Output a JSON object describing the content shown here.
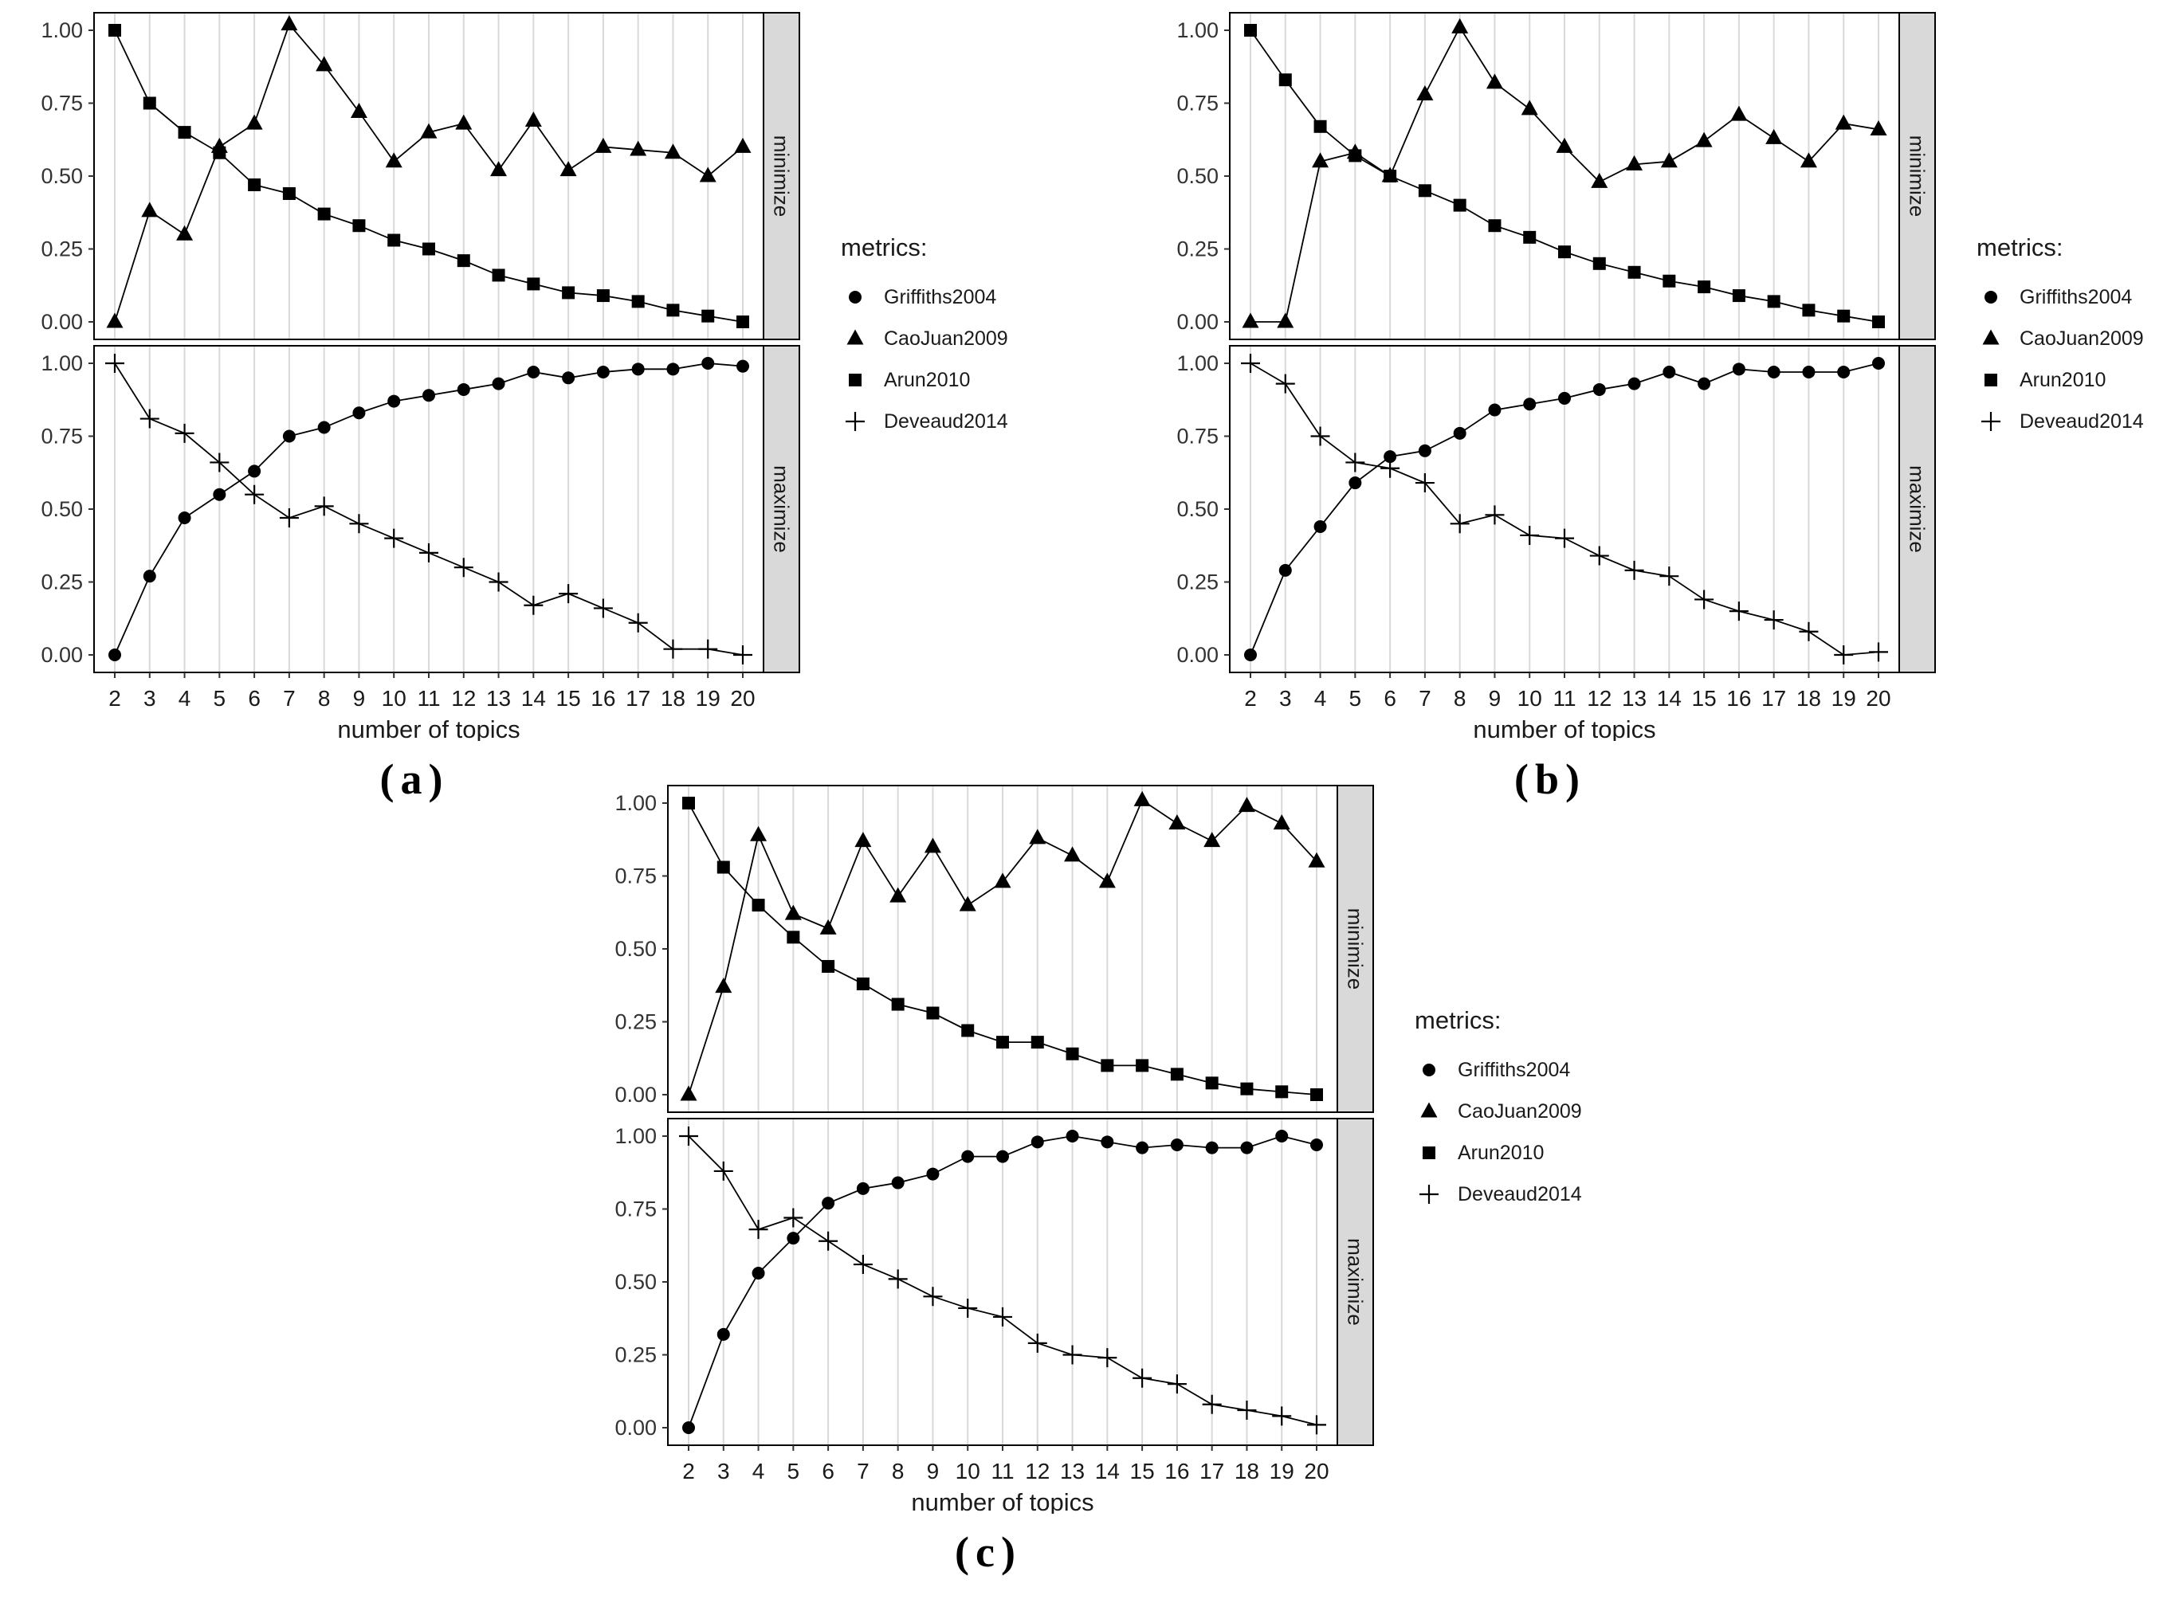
{
  "figure": {
    "x_label": "number of topics",
    "y_tick_values": [
      0,
      0.25,
      0.5,
      0.75,
      1
    ],
    "y_tick_labels": [
      "0.00",
      "0.25",
      "0.50",
      "0.75",
      "1.00"
    ],
    "facet_labels": [
      "minimize",
      "maximize"
    ],
    "legend": {
      "title": "metrics:",
      "items": [
        {
          "label": "Griffiths2004",
          "marker": "circle"
        },
        {
          "label": "CaoJuan2009",
          "marker": "triangle"
        },
        {
          "label": "Arun2010",
          "marker": "square"
        },
        {
          "label": "Deveaud2014",
          "marker": "plus"
        }
      ]
    },
    "colors": {
      "points": "#000000",
      "grid": "#d9d9d9",
      "strip_fill": "#d9d9d9",
      "panel_border": "#000000",
      "tick_text": "#333333"
    }
  },
  "chart_data": [
    {
      "panel": "(a)",
      "type": "line",
      "xlabel": "number of topics",
      "ylim": [
        0,
        1
      ],
      "x": [
        2,
        3,
        4,
        5,
        6,
        7,
        8,
        9,
        10,
        11,
        12,
        13,
        14,
        15,
        16,
        17,
        18,
        19,
        20
      ],
      "facets": [
        {
          "name": "minimize",
          "series": [
            {
              "name": "CaoJuan2009",
              "marker": "triangle",
              "values": [
                0.0,
                0.38,
                0.3,
                0.6,
                0.68,
                1.02,
                0.88,
                0.72,
                0.55,
                0.65,
                0.68,
                0.52,
                0.69,
                0.52,
                0.6,
                0.59,
                0.58,
                0.5,
                0.6
              ]
            },
            {
              "name": "Arun2010",
              "marker": "square",
              "values": [
                1.0,
                0.75,
                0.65,
                0.58,
                0.47,
                0.44,
                0.37,
                0.33,
                0.28,
                0.25,
                0.21,
                0.16,
                0.13,
                0.1,
                0.09,
                0.07,
                0.04,
                0.02,
                0.0
              ]
            }
          ]
        },
        {
          "name": "maximize",
          "series": [
            {
              "name": "Griffiths2004",
              "marker": "circle",
              "values": [
                0.0,
                0.27,
                0.47,
                0.55,
                0.63,
                0.75,
                0.78,
                0.83,
                0.87,
                0.89,
                0.91,
                0.93,
                0.97,
                0.95,
                0.97,
                0.98,
                0.98,
                1.0,
                0.99
              ]
            },
            {
              "name": "Deveaud2014",
              "marker": "plus",
              "values": [
                1.0,
                0.81,
                0.76,
                0.66,
                0.55,
                0.47,
                0.51,
                0.45,
                0.4,
                0.35,
                0.3,
                0.25,
                0.17,
                0.21,
                0.16,
                0.11,
                0.02,
                0.02,
                0.0
              ]
            }
          ]
        }
      ]
    },
    {
      "panel": "(b)",
      "type": "line",
      "xlabel": "number of topics",
      "ylim": [
        0,
        1
      ],
      "x": [
        2,
        3,
        4,
        5,
        6,
        7,
        8,
        9,
        10,
        11,
        12,
        13,
        14,
        15,
        16,
        17,
        18,
        19,
        20
      ],
      "facets": [
        {
          "name": "minimize",
          "series": [
            {
              "name": "CaoJuan2009",
              "marker": "triangle",
              "values": [
                0.0,
                0.0,
                0.55,
                0.58,
                0.5,
                0.78,
                1.01,
                0.82,
                0.73,
                0.6,
                0.48,
                0.54,
                0.55,
                0.62,
                0.71,
                0.63,
                0.55,
                0.68,
                0.66
              ]
            },
            {
              "name": "Arun2010",
              "marker": "square",
              "values": [
                1.0,
                0.83,
                0.67,
                0.57,
                0.5,
                0.45,
                0.4,
                0.33,
                0.29,
                0.24,
                0.2,
                0.17,
                0.14,
                0.12,
                0.09,
                0.07,
                0.04,
                0.02,
                0.0
              ]
            }
          ]
        },
        {
          "name": "maximize",
          "series": [
            {
              "name": "Griffiths2004",
              "marker": "circle",
              "values": [
                0.0,
                0.29,
                0.44,
                0.59,
                0.68,
                0.7,
                0.76,
                0.84,
                0.86,
                0.88,
                0.91,
                0.93,
                0.97,
                0.93,
                0.98,
                0.97,
                0.97,
                0.97,
                1.0
              ]
            },
            {
              "name": "Deveaud2014",
              "marker": "plus",
              "values": [
                1.0,
                0.93,
                0.75,
                0.66,
                0.64,
                0.59,
                0.45,
                0.48,
                0.41,
                0.4,
                0.34,
                0.29,
                0.27,
                0.19,
                0.15,
                0.12,
                0.08,
                0.0,
                0.01
              ]
            }
          ]
        }
      ]
    },
    {
      "panel": "(c)",
      "type": "line",
      "xlabel": "number of topics",
      "ylim": [
        0,
        1
      ],
      "x": [
        2,
        3,
        4,
        5,
        6,
        7,
        8,
        9,
        10,
        11,
        12,
        13,
        14,
        15,
        16,
        17,
        18,
        19,
        20
      ],
      "facets": [
        {
          "name": "minimize",
          "series": [
            {
              "name": "CaoJuan2009",
              "marker": "triangle",
              "values": [
                0.0,
                0.37,
                0.89,
                0.62,
                0.57,
                0.87,
                0.68,
                0.85,
                0.65,
                0.73,
                0.88,
                0.82,
                0.73,
                1.01,
                0.93,
                0.87,
                0.99,
                0.93,
                0.8
              ]
            },
            {
              "name": "Arun2010",
              "marker": "square",
              "values": [
                1.0,
                0.78,
                0.65,
                0.54,
                0.44,
                0.38,
                0.31,
                0.28,
                0.22,
                0.18,
                0.18,
                0.14,
                0.1,
                0.1,
                0.07,
                0.04,
                0.02,
                0.01,
                0.0
              ]
            }
          ]
        },
        {
          "name": "maximize",
          "series": [
            {
              "name": "Griffiths2004",
              "marker": "circle",
              "values": [
                0.0,
                0.32,
                0.53,
                0.65,
                0.77,
                0.82,
                0.84,
                0.87,
                0.93,
                0.93,
                0.98,
                1.0,
                0.98,
                0.96,
                0.97,
                0.96,
                0.96,
                1.0,
                0.97
              ]
            },
            {
              "name": "Deveaud2014",
              "marker": "plus",
              "values": [
                1.0,
                0.88,
                0.68,
                0.72,
                0.64,
                0.56,
                0.51,
                0.45,
                0.41,
                0.38,
                0.29,
                0.25,
                0.24,
                0.17,
                0.15,
                0.08,
                0.06,
                0.04,
                0.01
              ]
            }
          ]
        }
      ]
    }
  ]
}
